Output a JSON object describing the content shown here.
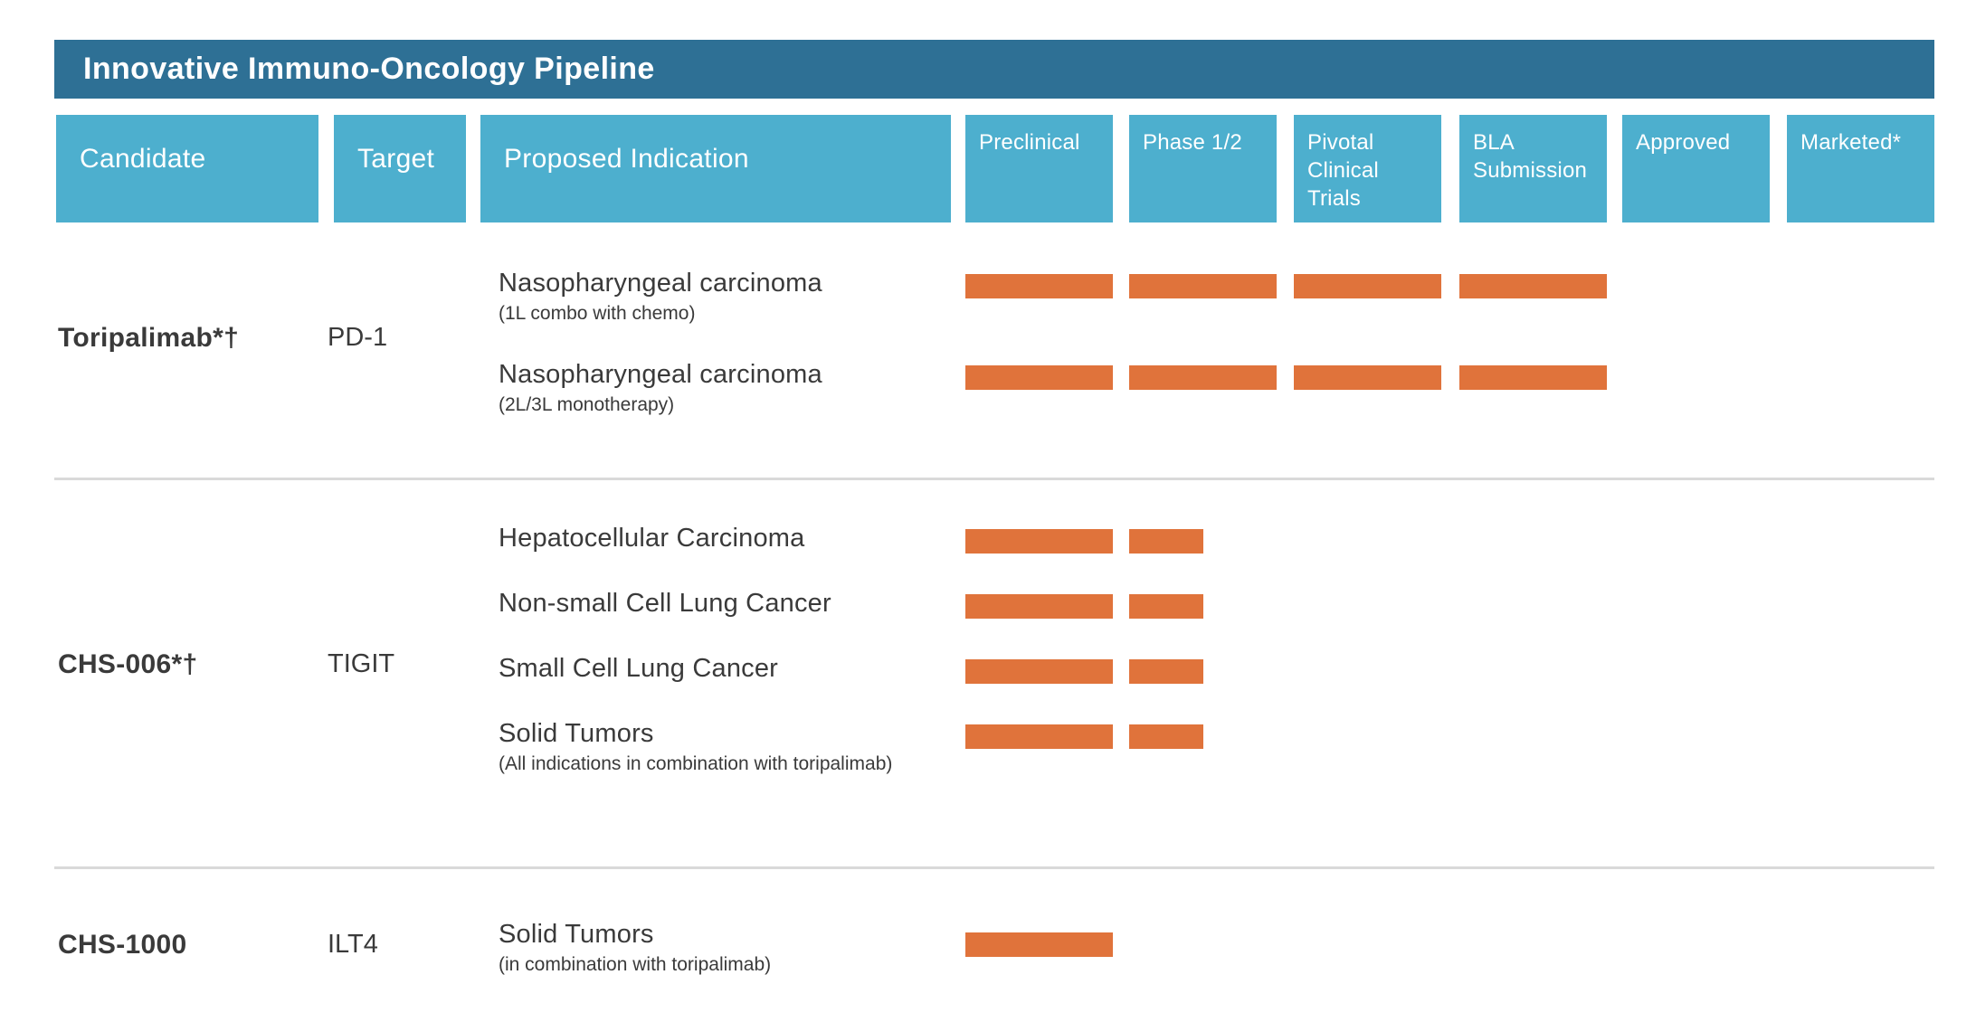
{
  "title_bar": {
    "title": "Innovative Immuno-Oncology Pipeline"
  },
  "columns": {
    "candidate": "Candidate",
    "target": "Target",
    "indication": "Proposed Indication"
  },
  "chart_data": {
    "type": "table",
    "title": "Innovative Immuno-Oncology Pipeline",
    "stage_columns": [
      "Preclinical",
      "Phase 1/2",
      "Pivotal Clinical Trials",
      "BLA Submission",
      "Approved",
      "Marketed*"
    ],
    "bar_unit": "fraction of stage column filled by orange progress bar",
    "rows": [
      {
        "candidate": "Toripalimab*†",
        "target": "PD-1",
        "indications": [
          {
            "name": "Nasopharyngeal carcinoma",
            "detail": "(1L combo with chemo)",
            "stage_progress": [
              1,
              1,
              1,
              1,
              0,
              0
            ]
          },
          {
            "name": "Nasopharyngeal carcinoma",
            "detail": "(2L/3L monotherapy)",
            "stage_progress": [
              1,
              1,
              1,
              1,
              0,
              0
            ]
          }
        ]
      },
      {
        "candidate": "CHS-006*†",
        "target": "TIGIT",
        "indications": [
          {
            "name": "Hepatocellular Carcinoma",
            "detail": "",
            "stage_progress": [
              1,
              0.5,
              0,
              0,
              0,
              0
            ]
          },
          {
            "name": "Non-small Cell Lung Cancer",
            "detail": "",
            "stage_progress": [
              1,
              0.5,
              0,
              0,
              0,
              0
            ]
          },
          {
            "name": "Small Cell Lung Cancer",
            "detail": "",
            "stage_progress": [
              1,
              0.5,
              0,
              0,
              0,
              0
            ]
          },
          {
            "name": "Solid Tumors",
            "detail": "(All indications in combination with toripalimab)",
            "stage_progress": [
              1,
              0.5,
              0,
              0,
              0,
              0
            ]
          }
        ]
      },
      {
        "candidate": "CHS-1000",
        "target": "ILT4",
        "indications": [
          {
            "name": "Solid Tumors",
            "detail": "(in combination with toripalimab)",
            "stage_progress": [
              1,
              0,
              0,
              0,
              0,
              0
            ]
          }
        ]
      }
    ]
  },
  "colors": {
    "title_bar_blue": "#2E7095",
    "column_header_blue": "#4DAFCE",
    "progress_bar_orange": "#E0733B",
    "body_text": "#3A3A3A",
    "divider_gray": "#D9D9D9"
  }
}
